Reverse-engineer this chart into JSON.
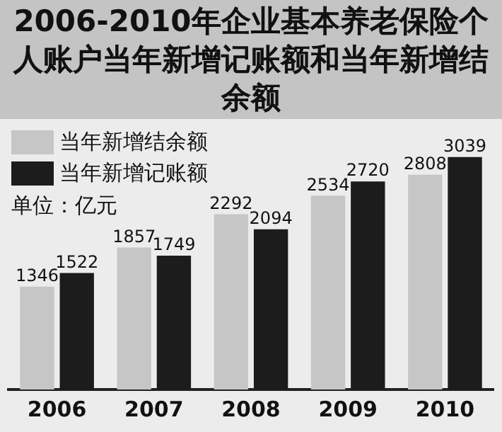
{
  "chart_data": {
    "type": "bar",
    "title": "2006-2010年企业基本养老保险个人账户当年新增记账额和当年新增结余额",
    "categories": [
      "2006",
      "2007",
      "2008",
      "2009",
      "2010"
    ],
    "series": [
      {
        "name": "当年新增结余额",
        "color": "#c6c6c6",
        "values": [
          1346,
          1857,
          2292,
          2534,
          2808
        ]
      },
      {
        "name": "当年新增记账额",
        "color": "#1c1c1c",
        "values": [
          1522,
          1749,
          2094,
          2720,
          3039
        ]
      }
    ],
    "annotations": [
      "单位：亿元"
    ],
    "data_labels": true,
    "legend": "top left",
    "grid": false
  }
}
